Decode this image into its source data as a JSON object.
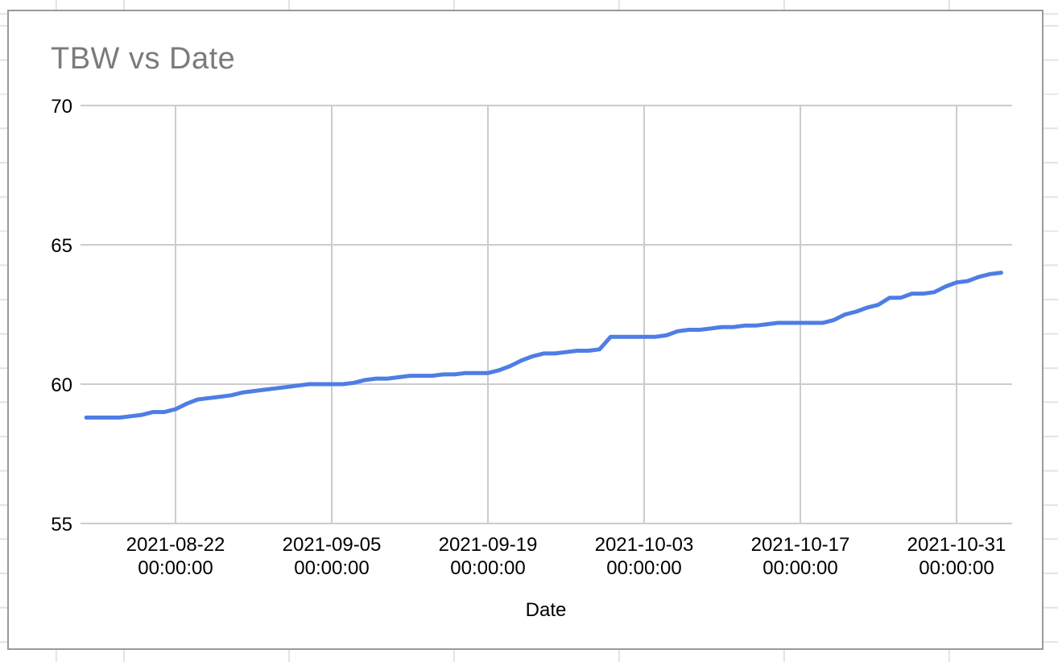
{
  "chart_data": {
    "type": "line",
    "title": "TBW vs Date",
    "xlabel": "Date",
    "ylabel": "",
    "legend": "none",
    "grid": true,
    "x_axis": {
      "tick_dates": [
        "2021-08-22",
        "2021-09-05",
        "2021-09-19",
        "2021-10-03",
        "2021-10-17",
        "2021-10-31"
      ],
      "tick_time_suffix": "00:00:00"
    },
    "y_axis": {
      "ticks": [
        55,
        60,
        65,
        70
      ],
      "range": [
        55,
        70
      ]
    },
    "series": [
      {
        "name": "TBW",
        "color": "#4e7de4",
        "points": [
          [
            "2021-08-14",
            58.8
          ],
          [
            "2021-08-15",
            58.8
          ],
          [
            "2021-08-16",
            58.8
          ],
          [
            "2021-08-17",
            58.8
          ],
          [
            "2021-08-18",
            58.85
          ],
          [
            "2021-08-19",
            58.9
          ],
          [
            "2021-08-20",
            59.0
          ],
          [
            "2021-08-21",
            59.0
          ],
          [
            "2021-08-22",
            59.1
          ],
          [
            "2021-08-23",
            59.3
          ],
          [
            "2021-08-24",
            59.45
          ],
          [
            "2021-08-25",
            59.5
          ],
          [
            "2021-08-26",
            59.55
          ],
          [
            "2021-08-27",
            59.6
          ],
          [
            "2021-08-28",
            59.7
          ],
          [
            "2021-08-29",
            59.75
          ],
          [
            "2021-08-30",
            59.8
          ],
          [
            "2021-08-31",
            59.85
          ],
          [
            "2021-09-01",
            59.9
          ],
          [
            "2021-09-02",
            59.95
          ],
          [
            "2021-09-03",
            60.0
          ],
          [
            "2021-09-04",
            60.0
          ],
          [
            "2021-09-05",
            60.0
          ],
          [
            "2021-09-06",
            60.0
          ],
          [
            "2021-09-07",
            60.05
          ],
          [
            "2021-09-08",
            60.15
          ],
          [
            "2021-09-09",
            60.2
          ],
          [
            "2021-09-10",
            60.2
          ],
          [
            "2021-09-11",
            60.25
          ],
          [
            "2021-09-12",
            60.3
          ],
          [
            "2021-09-13",
            60.3
          ],
          [
            "2021-09-14",
            60.3
          ],
          [
            "2021-09-15",
            60.35
          ],
          [
            "2021-09-16",
            60.35
          ],
          [
            "2021-09-17",
            60.4
          ],
          [
            "2021-09-18",
            60.4
          ],
          [
            "2021-09-19",
            60.4
          ],
          [
            "2021-09-20",
            60.5
          ],
          [
            "2021-09-21",
            60.65
          ],
          [
            "2021-09-22",
            60.85
          ],
          [
            "2021-09-23",
            61.0
          ],
          [
            "2021-09-24",
            61.1
          ],
          [
            "2021-09-25",
            61.1
          ],
          [
            "2021-09-26",
            61.15
          ],
          [
            "2021-09-27",
            61.2
          ],
          [
            "2021-09-28",
            61.2
          ],
          [
            "2021-09-29",
            61.25
          ],
          [
            "2021-09-30",
            61.7
          ],
          [
            "2021-10-01",
            61.7
          ],
          [
            "2021-10-02",
            61.7
          ],
          [
            "2021-10-03",
            61.7
          ],
          [
            "2021-10-04",
            61.7
          ],
          [
            "2021-10-05",
            61.75
          ],
          [
            "2021-10-06",
            61.9
          ],
          [
            "2021-10-07",
            61.95
          ],
          [
            "2021-10-08",
            61.95
          ],
          [
            "2021-10-09",
            62.0
          ],
          [
            "2021-10-10",
            62.05
          ],
          [
            "2021-10-11",
            62.05
          ],
          [
            "2021-10-12",
            62.1
          ],
          [
            "2021-10-13",
            62.1
          ],
          [
            "2021-10-14",
            62.15
          ],
          [
            "2021-10-15",
            62.2
          ],
          [
            "2021-10-16",
            62.2
          ],
          [
            "2021-10-17",
            62.2
          ],
          [
            "2021-10-18",
            62.2
          ],
          [
            "2021-10-19",
            62.2
          ],
          [
            "2021-10-20",
            62.3
          ],
          [
            "2021-10-21",
            62.5
          ],
          [
            "2021-10-22",
            62.6
          ],
          [
            "2021-10-23",
            62.75
          ],
          [
            "2021-10-24",
            62.85
          ],
          [
            "2021-10-25",
            63.1
          ],
          [
            "2021-10-26",
            63.1
          ],
          [
            "2021-10-27",
            63.25
          ],
          [
            "2021-10-28",
            63.25
          ],
          [
            "2021-10-29",
            63.3
          ],
          [
            "2021-10-30",
            63.5
          ],
          [
            "2021-10-31",
            63.65
          ],
          [
            "2021-11-01",
            63.7
          ],
          [
            "2021-11-02",
            63.85
          ],
          [
            "2021-11-03",
            63.95
          ],
          [
            "2021-11-04",
            64.0
          ]
        ]
      }
    ]
  },
  "colors": {
    "chart_background": "#ffffff",
    "chart_border": "#9a9a9a",
    "plot_gridline": "#cccccc",
    "title_text": "#7b7b7b",
    "axis_text": "#000000",
    "sheet_gridline": "#e3e3e3",
    "series_line": "#4e7de4"
  }
}
